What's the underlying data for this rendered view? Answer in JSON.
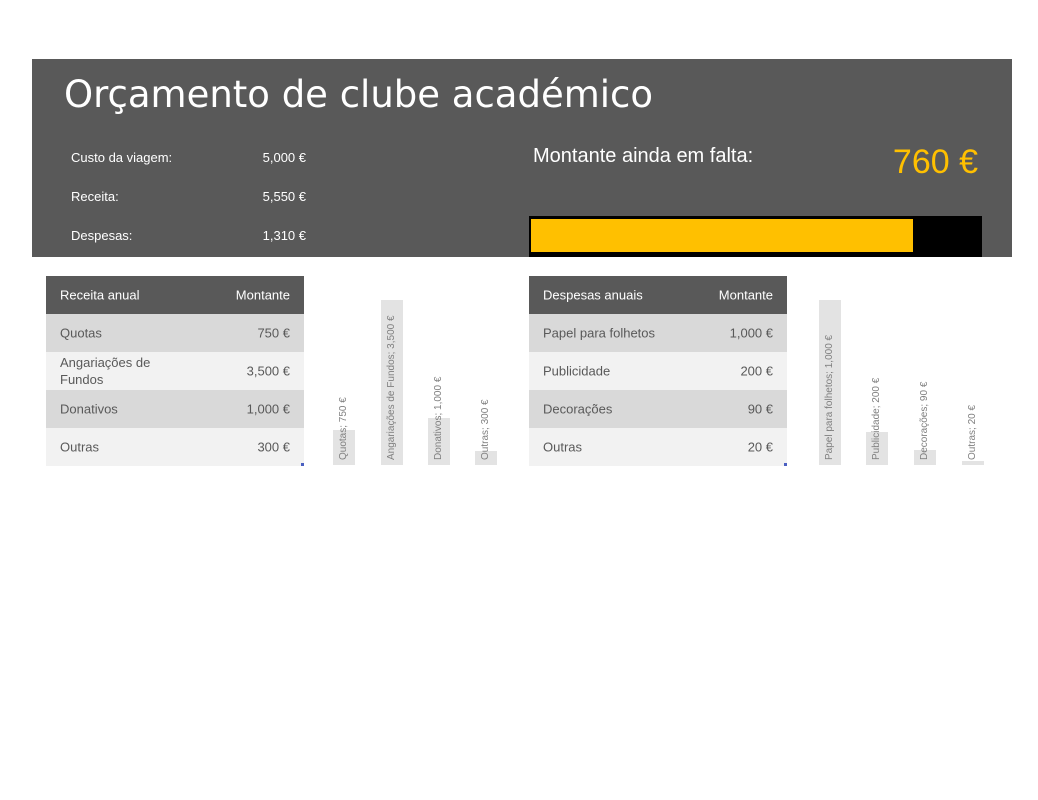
{
  "title": "Orçamento de clube académico",
  "summary": {
    "items": [
      {
        "label": "Custo da viagem:",
        "value": "5,000 €"
      },
      {
        "label": "Receita:",
        "value": "5,550 €"
      },
      {
        "label": "Despesas:",
        "value": "1,310 €"
      }
    ],
    "remaining_label": "Montante ainda em falta:",
    "remaining_value": "760 €",
    "progress_fraction": 0.85
  },
  "colors": {
    "header_bg": "#595959",
    "accent": "#ffc000",
    "row_dark": "#d9d9d9",
    "row_light": "#f2f2f2"
  },
  "income": {
    "headers": [
      "Receita anual",
      "Montante"
    ],
    "rows": [
      {
        "label": "Quotas",
        "amount": "750 €"
      },
      {
        "label": "Angariações de Fundos",
        "amount": "3,500 €"
      },
      {
        "label": "Donativos",
        "amount": "1,000 €"
      },
      {
        "label": "Outras",
        "amount": "300 €"
      }
    ]
  },
  "expenses": {
    "headers": [
      "Despesas anuais",
      "Montante"
    ],
    "rows": [
      {
        "label": "Papel para folhetos",
        "amount": "1,000 €"
      },
      {
        "label": "Publicidade",
        "amount": "200 €"
      },
      {
        "label": "Decorações",
        "amount": "90 €"
      },
      {
        "label": "Outras",
        "amount": "20 €"
      }
    ]
  },
  "chart_data": [
    {
      "type": "bar",
      "categories": [
        "Quotas",
        "Angariações de Fundos",
        "Donativos",
        "Outras"
      ],
      "values": [
        750,
        3500,
        1000,
        300
      ],
      "data_labels": [
        "Quotas; 750 €",
        "Angariações de Fundos; 3,500 €",
        "Donativos; 1,000 €",
        "Outras; 300 €"
      ]
    },
    {
      "type": "bar",
      "categories": [
        "Papel para folhetos",
        "Publicidade",
        "Decorações",
        "Outras"
      ],
      "values": [
        1000,
        200,
        90,
        20
      ],
      "data_labels": [
        "Papel para folhetos; 1,000 €",
        "Publicidade; 200 €",
        "Decorações; 90 €",
        "Outras; 20 €"
      ]
    }
  ]
}
